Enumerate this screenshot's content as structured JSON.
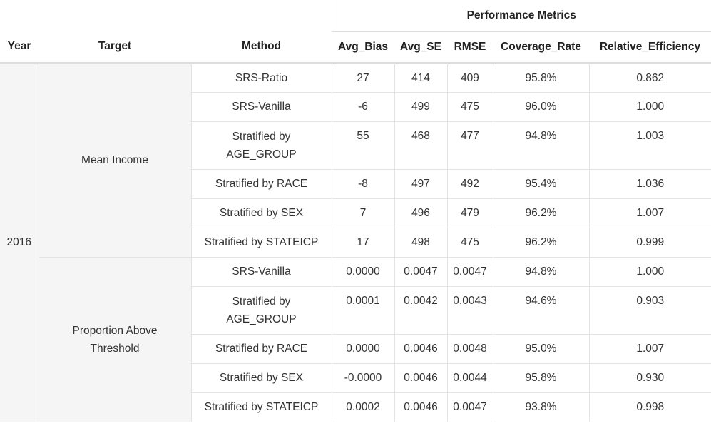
{
  "header": {
    "group_label": "Performance Metrics",
    "columns": [
      "Year",
      "Target",
      "Method",
      "Avg_Bias",
      "Avg_SE",
      "RMSE",
      "Coverage_Rate",
      "Relative_Efficiency"
    ]
  },
  "year": "2016",
  "targets": [
    {
      "label": "Mean Income",
      "rows": [
        {
          "method": "SRS-Ratio",
          "avg_bias": "27",
          "avg_se": "414",
          "rmse": "409",
          "coverage_rate": "95.8%",
          "relative_efficiency": "0.862"
        },
        {
          "method": "SRS-Vanilla",
          "avg_bias": "-6",
          "avg_se": "499",
          "rmse": "475",
          "coverage_rate": "96.0%",
          "relative_efficiency": "1.000"
        },
        {
          "method": "Stratified by AGE_GROUP",
          "avg_bias": "55",
          "avg_se": "468",
          "rmse": "477",
          "coverage_rate": "94.8%",
          "relative_efficiency": "1.003"
        },
        {
          "method": "Stratified by RACE",
          "avg_bias": "-8",
          "avg_se": "497",
          "rmse": "492",
          "coverage_rate": "95.4%",
          "relative_efficiency": "1.036"
        },
        {
          "method": "Stratified by SEX",
          "avg_bias": "7",
          "avg_se": "496",
          "rmse": "479",
          "coverage_rate": "96.2%",
          "relative_efficiency": "1.007"
        },
        {
          "method": "Stratified by STATEICP",
          "avg_bias": "17",
          "avg_se": "498",
          "rmse": "475",
          "coverage_rate": "96.2%",
          "relative_efficiency": "0.999"
        }
      ]
    },
    {
      "label": "Proportion Above Threshold",
      "rows": [
        {
          "method": "SRS-Vanilla",
          "avg_bias": "0.0000",
          "avg_se": "0.0047",
          "rmse": "0.0047",
          "coverage_rate": "94.8%",
          "relative_efficiency": "1.000"
        },
        {
          "method": "Stratified by AGE_GROUP",
          "avg_bias": "0.0001",
          "avg_se": "0.0042",
          "rmse": "0.0043",
          "coverage_rate": "94.6%",
          "relative_efficiency": "0.903"
        },
        {
          "method": "Stratified by RACE",
          "avg_bias": "0.0000",
          "avg_se": "0.0046",
          "rmse": "0.0048",
          "coverage_rate": "95.0%",
          "relative_efficiency": "1.007"
        },
        {
          "method": "Stratified by SEX",
          "avg_bias": "-0.0000",
          "avg_se": "0.0046",
          "rmse": "0.0044",
          "coverage_rate": "95.8%",
          "relative_efficiency": "0.930"
        },
        {
          "method": "Stratified by STATEICP",
          "avg_bias": "0.0002",
          "avg_se": "0.0046",
          "rmse": "0.0047",
          "coverage_rate": "93.8%",
          "relative_efficiency": "0.998"
        }
      ]
    }
  ]
}
